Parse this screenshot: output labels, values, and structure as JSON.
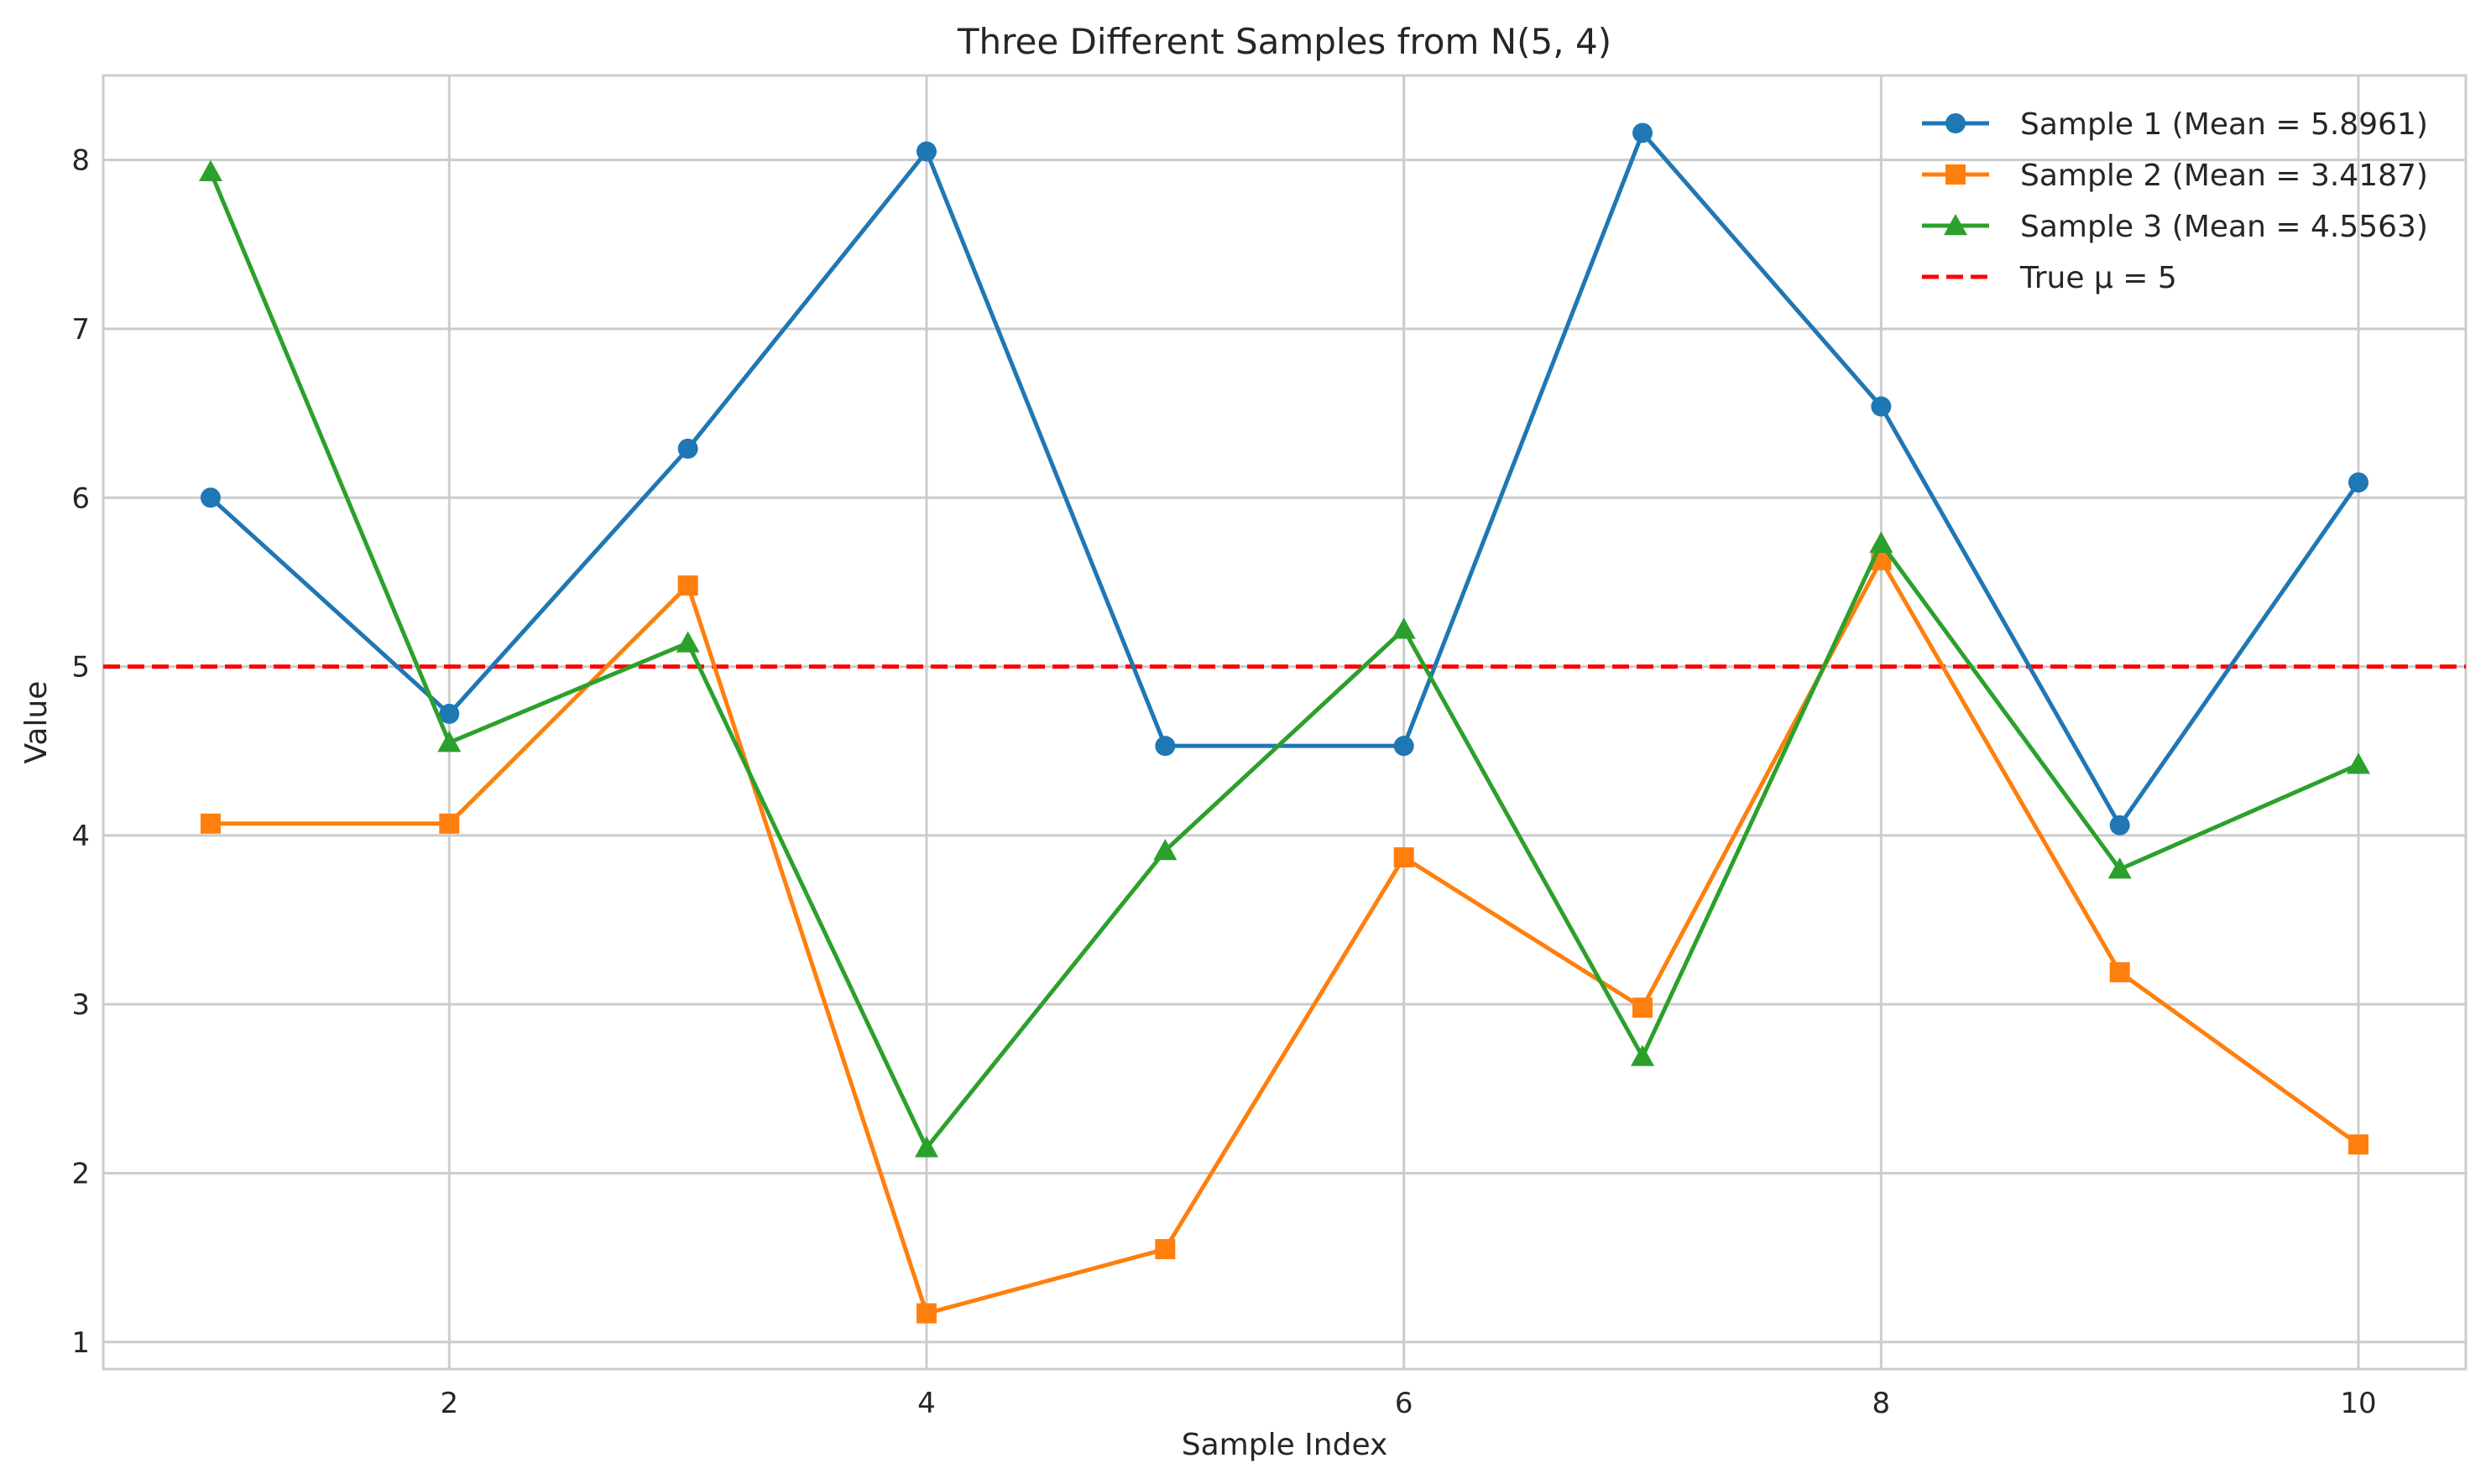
{
  "chart_data": {
    "type": "line",
    "title": "Three Different Samples from N(5, 4)",
    "xlabel": "Sample Index",
    "ylabel": "Value",
    "xlim": [
      0.55,
      10.45
    ],
    "ylim": [
      0.84,
      8.5
    ],
    "xticks": [
      2,
      4,
      6,
      8,
      10
    ],
    "yticks": [
      1,
      2,
      3,
      4,
      5,
      6,
      7,
      8
    ],
    "grid": true,
    "legend_position": "top-right",
    "x": [
      1,
      2,
      3,
      4,
      5,
      6,
      7,
      8,
      9,
      10
    ],
    "series": [
      {
        "name": "Sample 1 (Mean = 5.8961)",
        "color": "#1f77b4",
        "marker": "circle",
        "values": [
          6.0,
          4.72,
          6.29,
          8.05,
          4.53,
          4.53,
          8.16,
          6.54,
          4.06,
          6.09
        ]
      },
      {
        "name": "Sample 2 (Mean = 3.4187)",
        "color": "#ff7f0e",
        "marker": "square",
        "values": [
          4.07,
          4.07,
          5.48,
          1.17,
          1.55,
          3.87,
          2.98,
          5.63,
          3.19,
          2.17
        ]
      },
      {
        "name": "Sample 3 (Mean = 4.5563)",
        "color": "#2ca02c",
        "marker": "triangle",
        "values": [
          7.93,
          4.55,
          5.14,
          2.15,
          3.91,
          5.22,
          2.69,
          5.73,
          3.8,
          4.42
        ]
      }
    ],
    "reference_line": {
      "name": "True μ = 5",
      "y": 5,
      "color": "#ff0000",
      "style": "dashed"
    }
  }
}
